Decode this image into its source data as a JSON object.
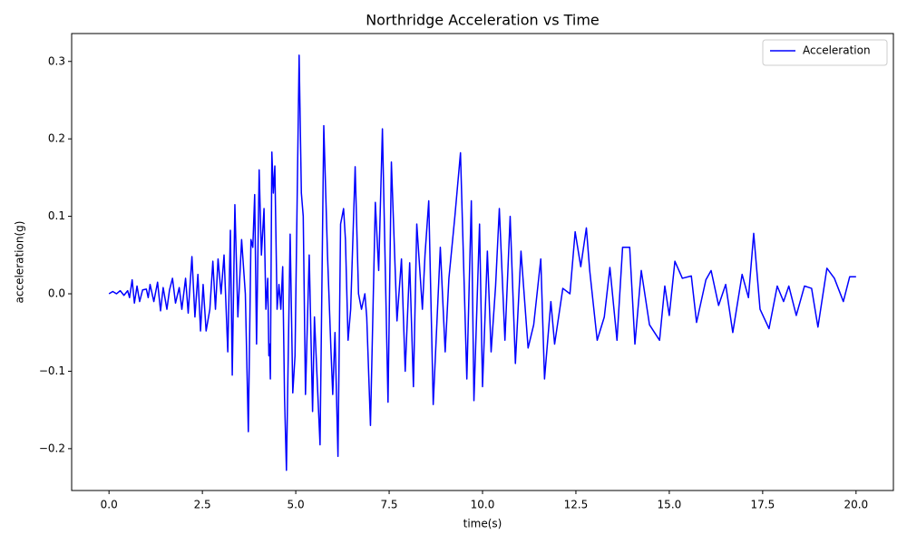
{
  "chart_data": {
    "type": "line",
    "title": "Northridge Acceleration vs Time",
    "x_label": "time(s)",
    "y_label": "acceleration(g)",
    "legend": "upper right",
    "grid": false,
    "xlim": [
      -1,
      21
    ],
    "ylim": [
      -0.254,
      0.336
    ],
    "xticks": [
      {
        "value": 0,
        "label": "0.0"
      },
      2.5,
      {
        "value": 5,
        "label": "5.0"
      },
      7.5,
      {
        "value": 10,
        "label": "10.0"
      },
      12.5,
      {
        "value": 15,
        "label": "15.0"
      },
      17.5,
      {
        "value": 20,
        "label": "20.0"
      }
    ],
    "yticks": [
      {
        "value": -0.2,
        "label": "−0.2"
      },
      {
        "value": -0.1,
        "label": "−0.1"
      },
      {
        "value": 0,
        "label": "0.0"
      },
      0.1,
      0.2,
      0.3
    ],
    "x": [
      0,
      0.1,
      0.2,
      0.3,
      0.4,
      0.5,
      0.55,
      0.62,
      0.68,
      0.75,
      0.82,
      0.9,
      1.0,
      1.05,
      1.1,
      1.2,
      1.3,
      1.38,
      1.45,
      1.55,
      1.62,
      1.7,
      1.78,
      1.88,
      1.95,
      2.05,
      2.12,
      2.22,
      2.3,
      2.38,
      2.45,
      2.52,
      2.6,
      2.7,
      2.78,
      2.85,
      2.92,
      3.0,
      3.08,
      3.18,
      3.25,
      3.3,
      3.37,
      3.45,
      3.55,
      3.65,
      3.73,
      3.8,
      3.85,
      3.9,
      3.95,
      4.02,
      4.08,
      4.15,
      4.2,
      4.25,
      4.28,
      4.3,
      4.32,
      4.36,
      4.4,
      4.44,
      4.5,
      4.55,
      4.6,
      4.65,
      4.7,
      4.75,
      4.85,
      4.92,
      4.98,
      5.09,
      5.15,
      5.2,
      5.26,
      5.36,
      5.45,
      5.5,
      5.65,
      5.75,
      5.85,
      5.94,
      5.99,
      6.05,
      6.13,
      6.2,
      6.28,
      6.33,
      6.4,
      6.47,
      6.59,
      6.68,
      6.76,
      6.85,
      6.9,
      7.0,
      7.13,
      7.22,
      7.32,
      7.47,
      7.56,
      7.71,
      7.83,
      7.93,
      8.05,
      8.15,
      8.24,
      8.39,
      8.46,
      8.56,
      8.68,
      8.87,
      9.0,
      9.1,
      9.26,
      9.41,
      9.58,
      9.7,
      9.77,
      9.92,
      10.0,
      10.13,
      10.23,
      10.35,
      10.45,
      10.6,
      10.74,
      10.88,
      11.03,
      11.22,
      11.37,
      11.56,
      11.66,
      11.83,
      11.93,
      12.15,
      12.34,
      12.48,
      12.63,
      12.78,
      12.87,
      13.07,
      13.26,
      13.41,
      13.6,
      13.75,
      13.94,
      14.08,
      14.25,
      14.47,
      14.74,
      14.88,
      15.0,
      15.15,
      15.35,
      15.59,
      15.73,
      15.98,
      16.12,
      16.32,
      16.51,
      16.7,
      16.95,
      17.12,
      17.26,
      17.43,
      17.67,
      17.89,
      18.06,
      18.2,
      18.4,
      18.62,
      18.81,
      18.98,
      19.22,
      19.42,
      19.66,
      19.83,
      20.0
    ],
    "series": [
      {
        "name": "Acceleration",
        "color": "#0000ff",
        "values": [
          0.0,
          0.003,
          0.0,
          0.004,
          -0.002,
          0.004,
          -0.005,
          0.018,
          -0.012,
          0.01,
          -0.01,
          0.005,
          0.006,
          -0.005,
          0.012,
          -0.01,
          0.015,
          -0.022,
          0.008,
          -0.02,
          0.005,
          0.02,
          -0.012,
          0.008,
          -0.02,
          0.02,
          -0.025,
          0.048,
          -0.03,
          0.025,
          -0.048,
          0.012,
          -0.048,
          -0.02,
          0.042,
          -0.02,
          0.045,
          0.0,
          0.05,
          -0.075,
          0.082,
          -0.105,
          0.115,
          -0.03,
          0.07,
          0.0,
          -0.178,
          0.07,
          0.06,
          0.128,
          -0.065,
          0.16,
          0.05,
          0.11,
          -0.02,
          0.02,
          -0.08,
          -0.065,
          -0.11,
          0.183,
          0.13,
          0.165,
          -0.02,
          0.012,
          -0.02,
          0.035,
          -0.135,
          -0.228,
          0.077,
          -0.128,
          -0.08,
          0.308,
          0.13,
          0.1,
          -0.13,
          0.05,
          -0.152,
          -0.03,
          -0.195,
          0.217,
          0.05,
          -0.07,
          -0.13,
          -0.05,
          -0.21,
          0.09,
          0.11,
          0.07,
          -0.06,
          -0.02,
          0.164,
          0.0,
          -0.02,
          0.0,
          -0.03,
          -0.17,
          0.118,
          0.03,
          0.213,
          -0.14,
          0.17,
          -0.035,
          0.045,
          -0.1,
          0.04,
          -0.12,
          0.09,
          -0.02,
          0.05,
          0.12,
          -0.143,
          0.06,
          -0.075,
          0.02,
          0.1,
          0.182,
          -0.11,
          0.12,
          -0.138,
          0.09,
          -0.12,
          0.055,
          -0.075,
          0.01,
          0.11,
          -0.06,
          0.1,
          -0.09,
          0.055,
          -0.07,
          -0.04,
          0.045,
          -0.11,
          -0.01,
          -0.065,
          0.007,
          0.0,
          0.08,
          0.035,
          0.085,
          0.03,
          -0.06,
          -0.03,
          0.034,
          -0.06,
          0.06,
          0.06,
          -0.065,
          0.03,
          -0.04,
          -0.06,
          0.01,
          -0.028,
          0.042,
          0.02,
          0.023,
          -0.037,
          0.018,
          0.03,
          -0.015,
          0.012,
          -0.05,
          0.025,
          -0.005,
          0.078,
          -0.02,
          -0.045,
          0.01,
          -0.01,
          0.01,
          -0.028,
          0.01,
          0.007,
          -0.043,
          0.033,
          0.02,
          -0.01,
          0.022,
          0.022
        ]
      }
    ]
  }
}
